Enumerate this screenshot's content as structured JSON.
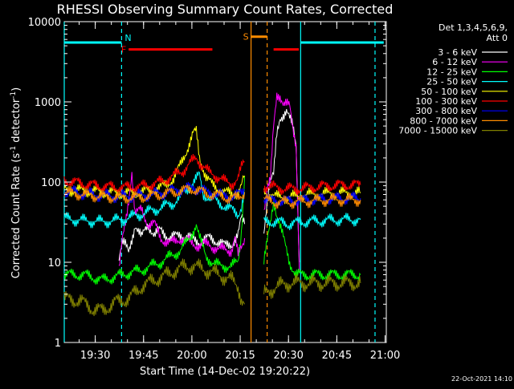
{
  "chart_data": {
    "type": "line",
    "title": "RHESSI Observing Summary Count Rates, Corrected",
    "xlabel": "Start Time (14-Dec-02 19:20:22)",
    "ylabel_main": "Corrected Count Rate (s",
    "ylabel_exp1": "-1",
    "ylabel_mid": " detector",
    "ylabel_exp2": "-1",
    "ylabel_end": ")",
    "yscale": "log",
    "ylim": [
      1,
      10000
    ],
    "xlim_minutes": [
      0,
      100
    ],
    "x_ticks": [
      {
        "label": "19:30",
        "t": 9.63
      },
      {
        "label": "19:45",
        "t": 24.63
      },
      {
        "label": "20:00",
        "t": 39.63
      },
      {
        "label": "20:15",
        "t": 54.63
      },
      {
        "label": "20:30",
        "t": 69.63
      },
      {
        "label": "20:45",
        "t": 84.63
      },
      {
        "label": "21:00",
        "t": 99.63
      }
    ],
    "y_ticks": [
      {
        "label": "1",
        "v": 1
      },
      {
        "label": "10",
        "v": 10
      },
      {
        "label": "100",
        "v": 100
      },
      {
        "label": "1000",
        "v": 1000
      },
      {
        "label": "10000",
        "v": 10000
      }
    ],
    "legend_header": [
      "Det 1,3,4,5,6,9,",
      "Att 0"
    ],
    "series": [
      {
        "name": "3 - 6 keV",
        "color": "#ffffff",
        "points": [
          [
            17,
            12
          ],
          [
            18,
            18
          ],
          [
            19,
            16
          ],
          [
            20,
            13
          ],
          [
            22,
            30
          ],
          [
            24,
            20
          ],
          [
            26,
            30
          ],
          [
            28,
            22
          ],
          [
            30,
            25
          ],
          [
            33,
            20
          ],
          [
            36,
            22
          ],
          [
            39,
            20
          ],
          [
            42,
            18
          ],
          [
            45,
            20
          ],
          [
            48,
            18
          ],
          [
            50,
            16
          ],
          [
            52,
            17
          ],
          [
            54,
            22
          ],
          [
            55,
            35
          ],
          [
            56,
            30
          ],
          [
            60,
            null
          ],
          [
            62,
            25
          ],
          [
            63,
            60
          ],
          [
            64,
            100
          ],
          [
            65,
            120
          ],
          [
            66,
            400
          ],
          [
            67,
            650
          ],
          [
            69,
            750
          ],
          [
            70,
            600
          ],
          [
            71,
            500
          ],
          [
            72,
            300
          ],
          [
            73,
            10
          ]
        ]
      },
      {
        "name": "6 - 12 keV",
        "color": "#ff00ff",
        "points": [
          [
            17,
            8
          ],
          [
            18,
            18
          ],
          [
            19,
            30
          ],
          [
            20,
            60
          ],
          [
            21,
            140
          ],
          [
            22,
            40
          ],
          [
            24,
            45
          ],
          [
            26,
            30
          ],
          [
            28,
            30
          ],
          [
            30,
            20
          ],
          [
            33,
            17
          ],
          [
            36,
            20
          ],
          [
            39,
            18
          ],
          [
            42,
            16
          ],
          [
            45,
            17
          ],
          [
            48,
            14
          ],
          [
            50,
            15
          ],
          [
            52,
            14
          ],
          [
            53,
            20
          ],
          [
            54,
            12
          ],
          [
            56,
            20
          ],
          [
            60,
            null
          ],
          [
            62,
            45
          ],
          [
            63,
            80
          ],
          [
            64,
            100
          ],
          [
            65,
            500
          ],
          [
            66,
            1300
          ],
          [
            67,
            1200
          ],
          [
            68,
            900
          ],
          [
            70,
            900
          ],
          [
            71,
            500
          ],
          [
            72,
            300
          ],
          [
            73,
            8
          ]
        ]
      },
      {
        "name": "12 - 25 keV",
        "color": "#00ff00",
        "points": [
          [
            0,
            7
          ],
          [
            6,
            7
          ],
          [
            12,
            6
          ],
          [
            18,
            7
          ],
          [
            24,
            8
          ],
          [
            30,
            10
          ],
          [
            36,
            14
          ],
          [
            39,
            20
          ],
          [
            41,
            30
          ],
          [
            42,
            20
          ],
          [
            44,
            12
          ],
          [
            46,
            10
          ],
          [
            48,
            9
          ],
          [
            50,
            9
          ],
          [
            52,
            9
          ],
          [
            54,
            10
          ],
          [
            55,
            25
          ],
          [
            56,
            120
          ],
          [
            60,
            null
          ],
          [
            62,
            10
          ],
          [
            64,
            30
          ],
          [
            65,
            60
          ],
          [
            66,
            40
          ],
          [
            68,
            20
          ],
          [
            70,
            10
          ],
          [
            72,
            7
          ],
          [
            75,
            7
          ],
          [
            80,
            7
          ],
          [
            88,
            7
          ],
          [
            92,
            7
          ]
        ]
      },
      {
        "name": "25 - 50 keV",
        "color": "#00ffff",
        "points": [
          [
            0,
            35
          ],
          [
            6,
            33
          ],
          [
            12,
            32
          ],
          [
            18,
            34
          ],
          [
            24,
            40
          ],
          [
            30,
            48
          ],
          [
            34,
            55
          ],
          [
            36,
            65
          ],
          [
            38,
            80
          ],
          [
            40,
            100
          ],
          [
            42,
            120
          ],
          [
            43,
            70
          ],
          [
            45,
            65
          ],
          [
            48,
            55
          ],
          [
            50,
            50
          ],
          [
            52,
            45
          ],
          [
            54,
            40
          ],
          [
            55,
            50
          ],
          [
            56,
            80
          ],
          [
            60,
            null
          ],
          [
            62,
            32
          ],
          [
            66,
            32
          ],
          [
            70,
            30
          ],
          [
            74,
            32
          ],
          [
            80,
            33
          ],
          [
            86,
            34
          ],
          [
            92,
            34
          ]
        ]
      },
      {
        "name": "50 - 100 keV",
        "color": "#ffff00",
        "points": [
          [
            0,
            80
          ],
          [
            6,
            78
          ],
          [
            12,
            75
          ],
          [
            18,
            72
          ],
          [
            24,
            75
          ],
          [
            30,
            85
          ],
          [
            34,
            110
          ],
          [
            36,
            160
          ],
          [
            38,
            250
          ],
          [
            40,
            400
          ],
          [
            41,
            420
          ],
          [
            42,
            200
          ],
          [
            44,
            120
          ],
          [
            46,
            90
          ],
          [
            48,
            80
          ],
          [
            50,
            75
          ],
          [
            52,
            70
          ],
          [
            54,
            75
          ],
          [
            55,
            90
          ],
          [
            56,
            120
          ],
          [
            60,
            null
          ],
          [
            62,
            75
          ],
          [
            66,
            65
          ],
          [
            70,
            65
          ],
          [
            76,
            70
          ],
          [
            82,
            72
          ],
          [
            88,
            73
          ],
          [
            92,
            73
          ]
        ]
      },
      {
        "name": "100 - 300 keV",
        "color": "#ff0000",
        "points": [
          [
            0,
            105
          ],
          [
            6,
            95
          ],
          [
            12,
            88
          ],
          [
            18,
            85
          ],
          [
            24,
            88
          ],
          [
            30,
            100
          ],
          [
            34,
            120
          ],
          [
            37,
            140
          ],
          [
            39,
            170
          ],
          [
            41,
            200
          ],
          [
            43,
            160
          ],
          [
            45,
            130
          ],
          [
            48,
            115
          ],
          [
            50,
            100
          ],
          [
            52,
            95
          ],
          [
            54,
            110
          ],
          [
            55,
            150
          ],
          [
            56,
            180
          ],
          [
            60,
            null
          ],
          [
            62,
            90
          ],
          [
            66,
            85
          ],
          [
            70,
            82
          ],
          [
            76,
            85
          ],
          [
            82,
            90
          ],
          [
            88,
            92
          ],
          [
            92,
            92
          ]
        ]
      },
      {
        "name": "300 - 800 keV",
        "color": "#0000ff",
        "points": [
          [
            0,
            78
          ],
          [
            6,
            72
          ],
          [
            12,
            68
          ],
          [
            18,
            66
          ],
          [
            24,
            68
          ],
          [
            30,
            72
          ],
          [
            34,
            78
          ],
          [
            38,
            82
          ],
          [
            40,
            85
          ],
          [
            42,
            80
          ],
          [
            44,
            75
          ],
          [
            48,
            70
          ],
          [
            52,
            65
          ],
          [
            54,
            70
          ],
          [
            55,
            75
          ],
          [
            56,
            80
          ],
          [
            60,
            null
          ],
          [
            62,
            62
          ],
          [
            66,
            58
          ],
          [
            70,
            58
          ],
          [
            76,
            60
          ],
          [
            82,
            62
          ],
          [
            88,
            63
          ],
          [
            92,
            63
          ]
        ]
      },
      {
        "name": "800 - 7000 keV",
        "color": "#ff8c00",
        "points": [
          [
            0,
            75
          ],
          [
            6,
            70
          ],
          [
            12,
            66
          ],
          [
            18,
            64
          ],
          [
            24,
            65
          ],
          [
            30,
            70
          ],
          [
            34,
            75
          ],
          [
            38,
            80
          ],
          [
            40,
            82
          ],
          [
            42,
            78
          ],
          [
            44,
            72
          ],
          [
            48,
            68
          ],
          [
            52,
            62
          ],
          [
            54,
            65
          ],
          [
            55,
            70
          ],
          [
            56,
            75
          ],
          [
            60,
            null
          ],
          [
            62,
            60
          ],
          [
            66,
            56
          ],
          [
            70,
            56
          ],
          [
            76,
            58
          ],
          [
            82,
            60
          ],
          [
            88,
            60
          ],
          [
            92,
            60
          ]
        ]
      },
      {
        "name": "7000 - 15000 keV",
        "color": "#808000",
        "points": [
          [
            0,
            3.5
          ],
          [
            5,
            3.3
          ],
          [
            9,
            2.6
          ],
          [
            12,
            2.5
          ],
          [
            16,
            3.2
          ],
          [
            20,
            3.5
          ],
          [
            24,
            5
          ],
          [
            28,
            6
          ],
          [
            32,
            7
          ],
          [
            36,
            8.5
          ],
          [
            40,
            9
          ],
          [
            44,
            8
          ],
          [
            48,
            7
          ],
          [
            50,
            6.5
          ],
          [
            52,
            6
          ],
          [
            54,
            5
          ],
          [
            55,
            3.5
          ],
          [
            56,
            3
          ],
          [
            60,
            null
          ],
          [
            62,
            4
          ],
          [
            66,
            5
          ],
          [
            70,
            5.5
          ],
          [
            76,
            5.5
          ],
          [
            82,
            5.5
          ],
          [
            88,
            5.5
          ],
          [
            92,
            5.5
          ]
        ]
      }
    ],
    "flag_bars": [
      {
        "label": "N",
        "color": "#00ffff",
        "t0": 0,
        "t1": 17.8,
        "v": 5500
      },
      {
        "label": "",
        "color": "#00ffff",
        "t0": 73.4,
        "t1": 99.2,
        "v": 5500
      },
      {
        "label": "F",
        "color": "#ff0000",
        "t0": 20,
        "t1": 46,
        "v": 4500
      },
      {
        "label": "",
        "color": "#ff0000",
        "t0": 65,
        "t1": 72.8,
        "v": 4500
      },
      {
        "label": "S",
        "color": "#ff8c00",
        "t0": 58,
        "t1": 63,
        "v": 6500
      }
    ],
    "vlines": [
      {
        "t": 0,
        "color": "#00ffff",
        "dash": false
      },
      {
        "t": 17.8,
        "color": "#00ffff",
        "dash": true
      },
      {
        "t": 73.4,
        "color": "#00ffff",
        "dash": false
      },
      {
        "t": 96.5,
        "color": "#00ffff",
        "dash": true
      },
      {
        "t": 58,
        "color": "#ff8c00",
        "dash": false
      },
      {
        "t": 63,
        "color": "#ff8c00",
        "dash": true
      }
    ],
    "footer": "22-Oct-2021 14:10"
  }
}
